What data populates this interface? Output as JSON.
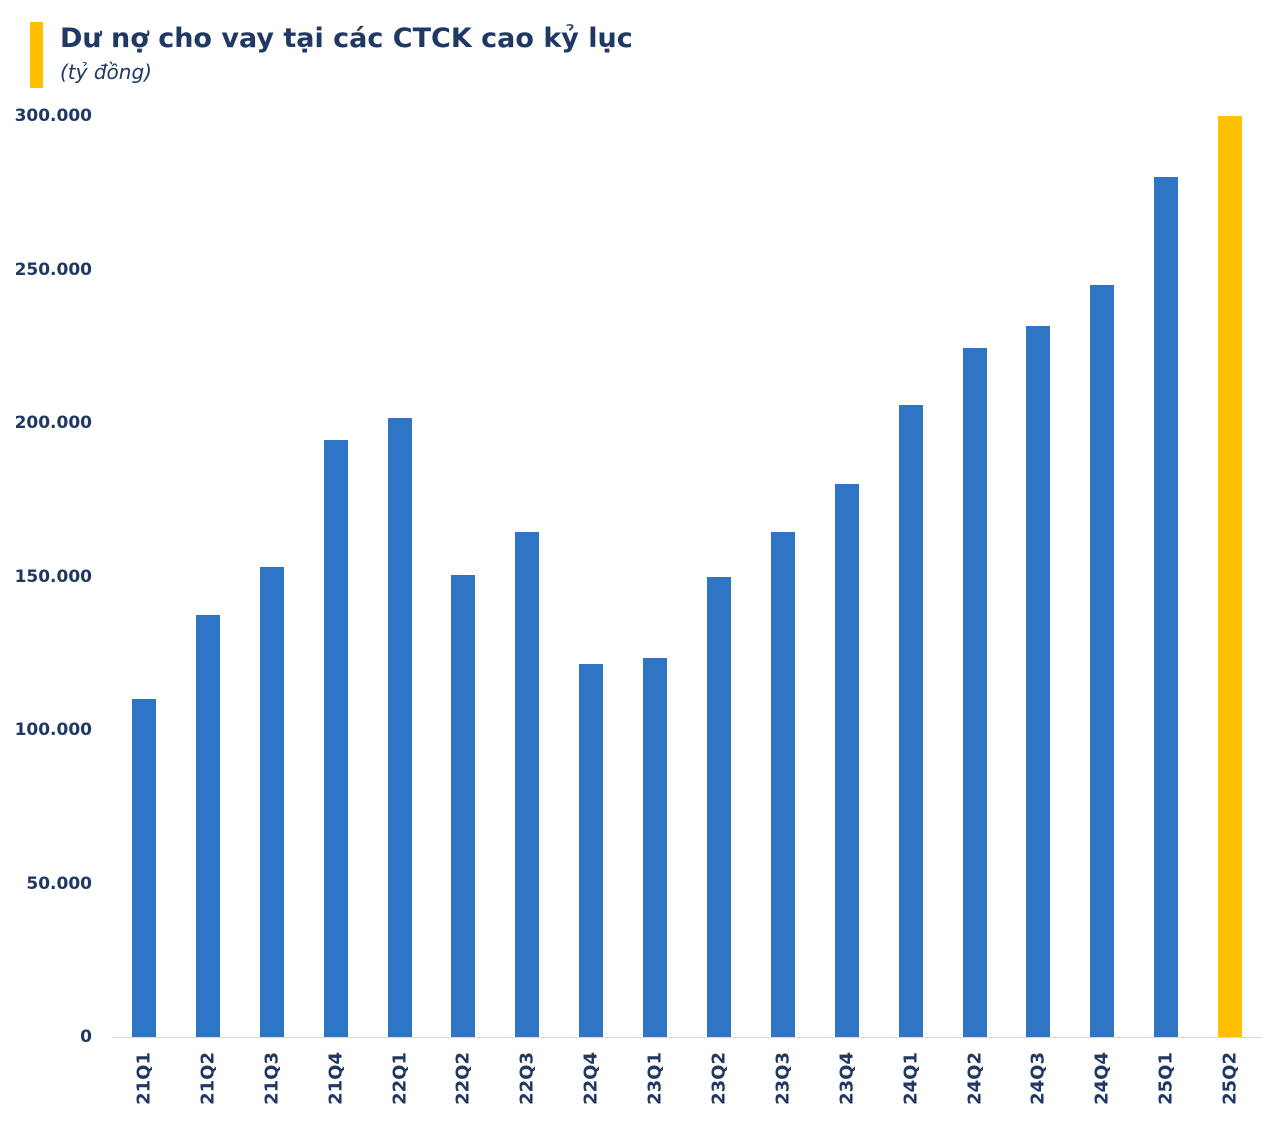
{
  "header": {
    "title": "Dư nợ cho vay tại các CTCK cao kỷ lục",
    "subtitle": "(tỷ đồng)"
  },
  "colors": {
    "accent": "#FFC000",
    "bar_default": "#2F75C5",
    "bar_highlight": "#FFC000",
    "title_text": "#1F3864",
    "axis_text": "#1F3864"
  },
  "chart_data": {
    "type": "bar",
    "title": "Dư nợ cho vay tại các CTCK cao kỷ lục",
    "unit_label": "(tỷ đồng)",
    "categories": [
      "21Q1",
      "21Q2",
      "21Q3",
      "21Q4",
      "22Q1",
      "22Q2",
      "22Q3",
      "22Q4",
      "23Q1",
      "23Q2",
      "23Q3",
      "23Q4",
      "24Q1",
      "24Q2",
      "24Q3",
      "24Q4",
      "25Q1",
      "25Q2"
    ],
    "values": [
      110000,
      137500,
      153000,
      194500,
      201500,
      150500,
      164500,
      121500,
      123500,
      150000,
      164500,
      180000,
      206000,
      224500,
      231500,
      245000,
      280000,
      300000
    ],
    "highlight_category": "25Q2",
    "ylim": [
      0,
      300000
    ],
    "yticks": [
      0,
      50000,
      100000,
      150000,
      200000,
      250000,
      300000
    ],
    "ytick_labels": [
      "0",
      "50.000",
      "100.000",
      "150.000",
      "200.000",
      "250.000",
      "300.000"
    ],
    "grid": false,
    "legend": false,
    "x_label_orientation": "vertical"
  }
}
